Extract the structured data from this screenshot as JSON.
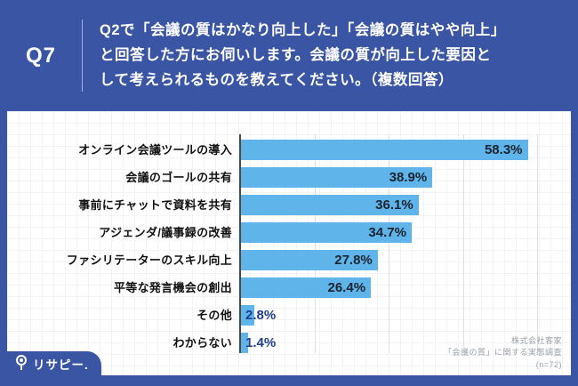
{
  "colors": {
    "navy": "#3A55A4",
    "bar_blue": "#5FB4E9",
    "value_label_dark": "#1d2330",
    "value_label_navy": "#1F3C8C"
  },
  "header": {
    "question_number": "Q7",
    "question_lines": [
      "Q2で「会議の質はかなり向上した」「会議の質はやや向上」",
      "と回答した方にお伺いします。会議の質が向上した要因と",
      "して考えられるものを教えてください。（複数回答）"
    ]
  },
  "chart_data": {
    "type": "bar",
    "orientation": "horizontal",
    "title": "",
    "xlabel": "",
    "ylabel": "",
    "categories": [
      "オンライン会議ツールの導入",
      "会議のゴールの共有",
      "事前にチャットで資料を共有",
      "アジェンダ/議事録の改善",
      "ファシリテーターのスキル向上",
      "平等な発言機会の創出",
      "その他",
      "わからない"
    ],
    "values": [
      58.3,
      38.9,
      36.1,
      34.7,
      27.8,
      26.4,
      2.8,
      1.4
    ],
    "value_labels": [
      "58.3%",
      "38.9%",
      "36.1%",
      "34.7%",
      "27.8%",
      "26.4%",
      "2.8%",
      "1.4%"
    ],
    "xlim": [
      0,
      66.7
    ],
    "gridlines": [
      15,
      30,
      45,
      60
    ],
    "grid": true,
    "legend": false,
    "sample_size": "n=72"
  },
  "footer": {
    "credit_lines": [
      "株式会社客家",
      "「会議の質」に関する実態調査",
      "(n=72)"
    ],
    "logo_text": "リサピー."
  }
}
